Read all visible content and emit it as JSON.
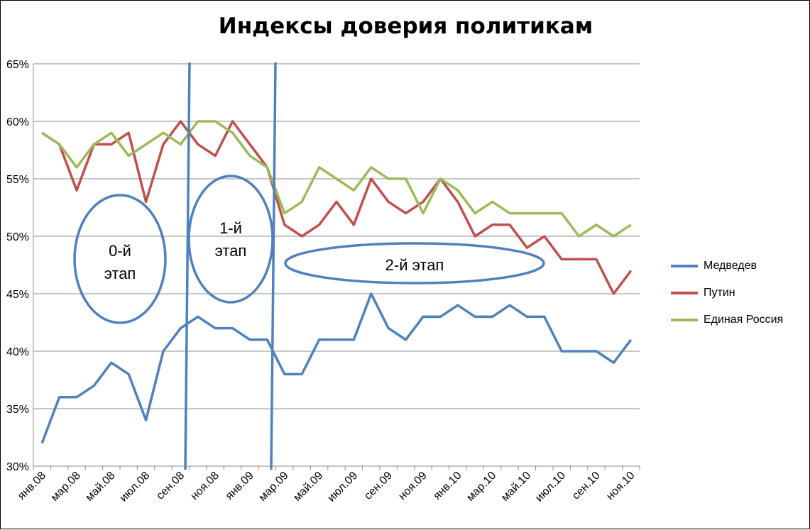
{
  "chart_data": {
    "type": "line",
    "title": "Индексы доверия политикам",
    "xlabel": "",
    "ylabel": "",
    "ylim": [
      30,
      65
    ],
    "y_ticks": [
      "30%",
      "35%",
      "40%",
      "45%",
      "50%",
      "55%",
      "60%",
      "65%"
    ],
    "y_tick_values": [
      30,
      35,
      40,
      45,
      50,
      55,
      60,
      65
    ],
    "grid": true,
    "legend": "right",
    "categories": [
      "янв.08",
      "фев.08",
      "мар.08",
      "апр.08",
      "май.08",
      "июн.08",
      "июл.08",
      "авг.08",
      "сен.08",
      "окт.08",
      "ноя.08",
      "дек.08",
      "янв.09",
      "фев.09",
      "мар.09",
      "апр.09",
      "май.09",
      "июн.09",
      "июл.09",
      "авг.09",
      "сен.09",
      "окт.09",
      "ноя.09",
      "дек.09",
      "янв.10",
      "фев.10",
      "мар.10",
      "апр.10",
      "май.10",
      "июн.10",
      "июл.10",
      "авг.10",
      "сен.10",
      "окт.10",
      "ноя.10"
    ],
    "x_tick_labels": [
      "янв.08",
      "мар.08",
      "май.08",
      "июл.08",
      "сен.08",
      "ноя.08",
      "янв.09",
      "мар.09",
      "май.09",
      "июл.09",
      "сен.09",
      "ноя.09",
      "янв.10",
      "мар.10",
      "май.10",
      "июл.10",
      "сен.10",
      "ноя.10"
    ],
    "series": [
      {
        "name": "Медведев",
        "color": "#4F81BD",
        "values": [
          32,
          36,
          36,
          37,
          39,
          38,
          34,
          40,
          42,
          43,
          42,
          42,
          41,
          41,
          38,
          38,
          41,
          41,
          41,
          45,
          42,
          41,
          43,
          43,
          44,
          43,
          43,
          44,
          43,
          43,
          40,
          40,
          40,
          39,
          41
        ]
      },
      {
        "name": "Путин",
        "color": "#C0504D",
        "values": [
          59,
          58,
          54,
          58,
          58,
          59,
          53,
          58,
          60,
          58,
          57,
          60,
          58,
          56,
          51,
          50,
          51,
          53,
          51,
          55,
          53,
          52,
          53,
          55,
          53,
          50,
          51,
          51,
          49,
          50,
          48,
          48,
          48,
          45,
          47
        ]
      },
      {
        "name": "Единая Россия",
        "color": "#9BBB59",
        "values": [
          59,
          58,
          56,
          58,
          59,
          57,
          58,
          59,
          58,
          60,
          60,
          59,
          57,
          56,
          52,
          53,
          56,
          55,
          54,
          56,
          55,
          55,
          52,
          55,
          54,
          52,
          53,
          52,
          52,
          52,
          52,
          50,
          51,
          50,
          51
        ]
      }
    ],
    "annotations": {
      "stage0": "0-й\nэтап",
      "stage1": "1-й\nэтап",
      "stage2": "2-й этап",
      "divider_color": "#4F81BD"
    }
  }
}
